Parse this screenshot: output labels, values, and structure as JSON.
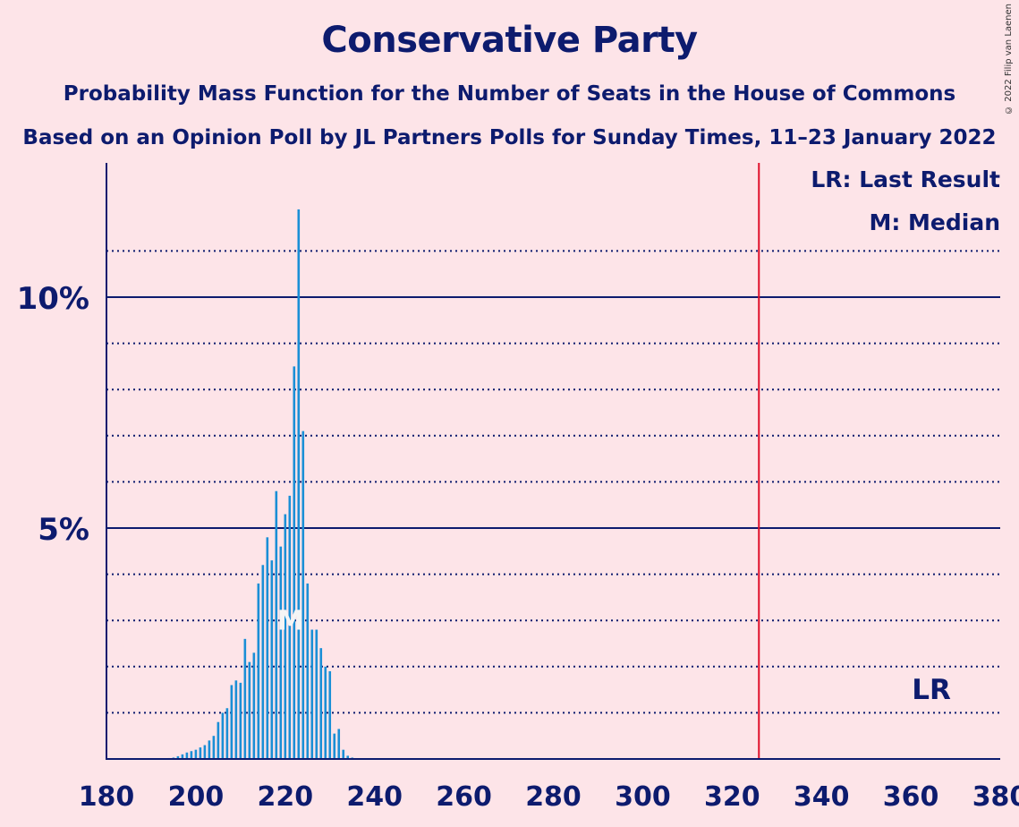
{
  "header": {
    "title": "Conservative Party",
    "subtitle1": "Probability Mass Function for the Number of Seats in the House of Commons",
    "subtitle2": "Based on an Opinion Poll by JL Partners Polls for Sunday Times, 11–23 January 2022",
    "copyright": "© 2022 Filip van Laenen"
  },
  "legend": {
    "last_result": "LR: Last Result",
    "median": "M: Median"
  },
  "chart_data": {
    "type": "bar",
    "title": "Conservative Party",
    "xlim": [
      180,
      380
    ],
    "ylim": [
      0,
      12.5
    ],
    "x_ticks": [
      180,
      200,
      220,
      240,
      260,
      280,
      300,
      320,
      340,
      360,
      380
    ],
    "y_ticks": [
      {
        "value": 5,
        "label": "5%"
      },
      {
        "value": 10,
        "label": "10%"
      }
    ],
    "y_minor_gridlines": [
      1,
      2,
      3,
      4,
      6,
      7,
      8,
      9,
      11
    ],
    "x": [
      193,
      194,
      195,
      196,
      197,
      198,
      199,
      200,
      201,
      202,
      203,
      204,
      205,
      206,
      207,
      208,
      209,
      210,
      211,
      212,
      213,
      214,
      215,
      216,
      217,
      218,
      219,
      220,
      221,
      222,
      223,
      224,
      225,
      226,
      227,
      228,
      229,
      230,
      231,
      232,
      233,
      234,
      235,
      236
    ],
    "values": [
      0.01,
      0.02,
      0.03,
      0.06,
      0.1,
      0.14,
      0.17,
      0.2,
      0.25,
      0.3,
      0.4,
      0.5,
      0.8,
      1.0,
      1.1,
      1.6,
      1.7,
      1.65,
      2.6,
      2.1,
      2.3,
      3.8,
      4.2,
      4.8,
      4.3,
      5.8,
      4.6,
      5.3,
      5.7,
      8.5,
      11.9,
      7.1,
      3.8,
      2.8,
      2.8,
      2.4,
      2.0,
      1.9,
      0.55,
      0.65,
      0.2,
      0.07,
      0.03,
      0.01
    ],
    "median": 221,
    "median_label": "M",
    "last_result": 326,
    "last_result_label": "LR",
    "colors": {
      "bars": "#1a8fd6",
      "axis": "#0d1b6e",
      "last_result_line": "#e0102a",
      "background": "#fde4e8"
    }
  }
}
